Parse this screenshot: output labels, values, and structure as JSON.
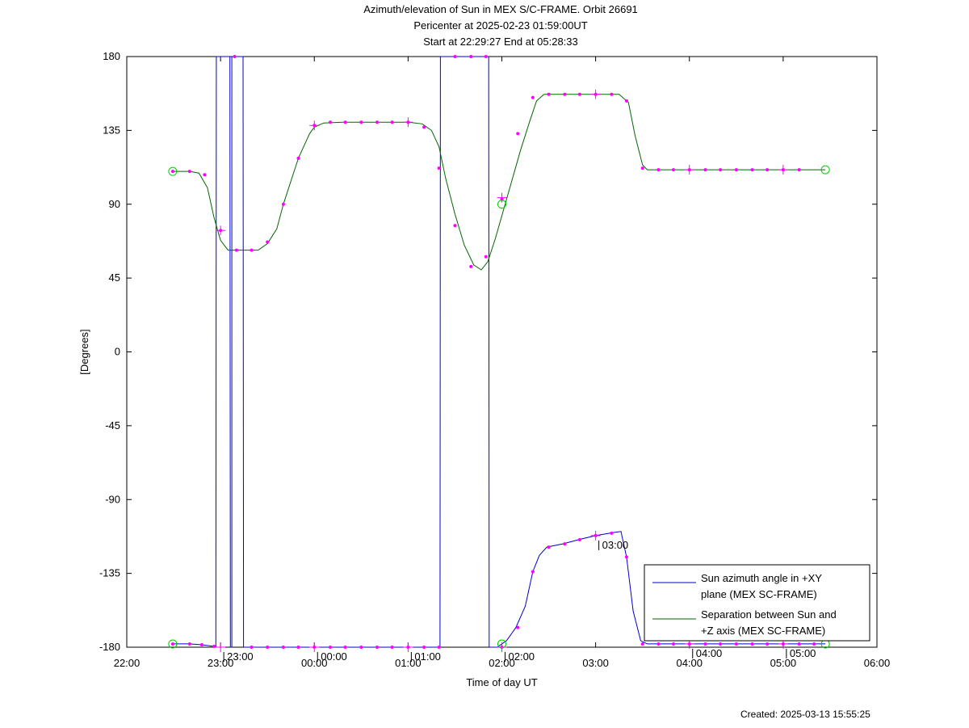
{
  "page": {
    "title_lines": [
      "Azimuth/elevation of Sun in MEX S/C-FRAME.  Orbit 26691",
      "Pericenter at 2025-02-23 01:59:00UT",
      "Start at 22:29:27 End at 05:28:33"
    ],
    "created": "Created: 2025-03-13 15:55:25"
  },
  "chart_data": {
    "type": "line",
    "title": "Azimuth/elevation of Sun in MEX S/C-FRAME.  Orbit 26691",
    "subtitle": "Pericenter at 2025-02-23 01:59:00UT / Start at 22:29:27 End at 05:28:33",
    "xlabel": "Time of day UT",
    "ylabel": "[Degrees]",
    "x_unit": "hours since 22:00 UT",
    "xlim": [
      0,
      8
    ],
    "ylim": [
      -180,
      180
    ],
    "x_ticks": [
      {
        "x": 0,
        "label": "22:00"
      },
      {
        "x": 1,
        "label": "23:00"
      },
      {
        "x": 2,
        "label": "00:00"
      },
      {
        "x": 3,
        "label": "01:00"
      },
      {
        "x": 4,
        "label": "02:00"
      },
      {
        "x": 5,
        "label": "03:00"
      },
      {
        "x": 6,
        "label": "04:00"
      },
      {
        "x": 7,
        "label": "05:00"
      },
      {
        "x": 8,
        "label": "06:00"
      }
    ],
    "y_ticks": [
      180,
      135,
      90,
      45,
      0,
      -45,
      -90,
      -135,
      -180
    ],
    "grid": false,
    "legend_position": "bottom-right",
    "series": [
      {
        "name": "Sun azimuth angle in +XY plane (MEX SC-FRAME)",
        "legend_lines": [
          "Sun azimuth angle in +XY",
          "plane (MEX SC-FRAME)"
        ],
        "color": "#0000cc",
        "points": [
          [
            0.49,
            -178
          ],
          [
            0.67,
            -178
          ],
          [
            0.8,
            -178.5
          ],
          [
            0.93,
            -179.5
          ],
          [
            0.95,
            -179.5
          ],
          [
            0.955,
            180
          ],
          [
            1.1,
            180
          ],
          [
            1.105,
            -180
          ],
          [
            1.12,
            -180
          ],
          [
            1.12,
            180
          ],
          [
            1.24,
            180
          ],
          [
            1.245,
            -180
          ],
          [
            1.5,
            -180
          ],
          [
            2.0,
            -180
          ],
          [
            2.5,
            -180
          ],
          [
            3.0,
            -180
          ],
          [
            3.3,
            -180
          ],
          [
            3.34,
            -180
          ],
          [
            3.345,
            180
          ],
          [
            3.8,
            180
          ],
          [
            3.86,
            180
          ],
          [
            3.865,
            -180
          ],
          [
            3.95,
            -180
          ],
          [
            4.05,
            -176
          ],
          [
            4.15,
            -168
          ],
          [
            4.25,
            -155
          ],
          [
            4.33,
            -134
          ],
          [
            4.4,
            -124
          ],
          [
            4.48,
            -119
          ],
          [
            4.65,
            -117
          ],
          [
            4.85,
            -114
          ],
          [
            5.0,
            -112
          ],
          [
            5.2,
            -110
          ],
          [
            5.27,
            -109.5
          ],
          [
            5.33,
            -125
          ],
          [
            5.4,
            -158
          ],
          [
            5.48,
            -176
          ],
          [
            5.55,
            -178
          ],
          [
            6.0,
            -178
          ],
          [
            6.5,
            -178
          ],
          [
            7.0,
            -178
          ],
          [
            7.45,
            -178
          ]
        ],
        "markers": [
          [
            0.49,
            -178
          ],
          [
            0.67,
            -178
          ],
          [
            0.8,
            -178.5
          ],
          [
            0.93,
            -179.5
          ],
          [
            1.15,
            180
          ],
          [
            1.33,
            -180
          ],
          [
            1.5,
            -180
          ],
          [
            1.67,
            -180
          ],
          [
            1.83,
            -180
          ],
          [
            2.0,
            -180
          ],
          [
            2.17,
            -180
          ],
          [
            2.33,
            -180
          ],
          [
            2.5,
            -180
          ],
          [
            2.67,
            -180
          ],
          [
            2.83,
            -180
          ],
          [
            3.0,
            -180
          ],
          [
            3.17,
            -180
          ],
          [
            3.33,
            -180
          ],
          [
            3.5,
            180
          ],
          [
            3.67,
            180
          ],
          [
            3.83,
            180
          ],
          [
            4.0,
            -180
          ],
          [
            4.17,
            -168
          ],
          [
            4.33,
            -134
          ],
          [
            4.5,
            -119
          ],
          [
            4.67,
            -117
          ],
          [
            4.83,
            -114.5
          ],
          [
            5.0,
            -112
          ],
          [
            5.17,
            -110.5
          ],
          [
            5.33,
            -125
          ],
          [
            5.5,
            -178
          ],
          [
            5.67,
            -178
          ],
          [
            5.83,
            -178
          ],
          [
            6.0,
            -178
          ],
          [
            6.17,
            -178
          ],
          [
            6.33,
            -178
          ],
          [
            6.5,
            -178
          ],
          [
            6.67,
            -178
          ],
          [
            6.83,
            -178
          ],
          [
            7.0,
            -178
          ],
          [
            7.17,
            -178
          ],
          [
            7.33,
            -178
          ]
        ],
        "crosses": [
          [
            1.0,
            -180
          ],
          [
            2.0,
            -180
          ],
          [
            3.0,
            -180
          ],
          [
            4.0,
            -180
          ],
          [
            5.0,
            -112
          ],
          [
            6.0,
            -178
          ],
          [
            7.0,
            -178
          ]
        ]
      },
      {
        "name": "Separation between Sun and +Z axis (MEX SC-FRAME)",
        "legend_lines": [
          "Separation between Sun and",
          "+Z axis (MEX SC-FRAME)"
        ],
        "color": "#006600",
        "points": [
          [
            0.49,
            110
          ],
          [
            0.67,
            110
          ],
          [
            0.77,
            109
          ],
          [
            0.86,
            100
          ],
          [
            0.93,
            82
          ],
          [
            1.0,
            68
          ],
          [
            1.08,
            62
          ],
          [
            1.25,
            62
          ],
          [
            1.4,
            62
          ],
          [
            1.5,
            66
          ],
          [
            1.6,
            75
          ],
          [
            1.67,
            90
          ],
          [
            1.83,
            118
          ],
          [
            1.95,
            133
          ],
          [
            2.0,
            137
          ],
          [
            2.1,
            139.5
          ],
          [
            2.3,
            140
          ],
          [
            2.75,
            140
          ],
          [
            3.0,
            140
          ],
          [
            3.15,
            139
          ],
          [
            3.25,
            135
          ],
          [
            3.33,
            125
          ],
          [
            3.4,
            106
          ],
          [
            3.5,
            84
          ],
          [
            3.6,
            65
          ],
          [
            3.7,
            53
          ],
          [
            3.78,
            50
          ],
          [
            3.85,
            55
          ],
          [
            3.93,
            69
          ],
          [
            4.0,
            83
          ],
          [
            4.1,
            103
          ],
          [
            4.2,
            123
          ],
          [
            4.3,
            141
          ],
          [
            4.37,
            153
          ],
          [
            4.45,
            157
          ],
          [
            4.6,
            157
          ],
          [
            5.0,
            157
          ],
          [
            5.25,
            157
          ],
          [
            5.35,
            152
          ],
          [
            5.42,
            132
          ],
          [
            5.5,
            114
          ],
          [
            5.55,
            111
          ],
          [
            6.0,
            111
          ],
          [
            6.5,
            111
          ],
          [
            7.0,
            111
          ],
          [
            7.45,
            111
          ]
        ],
        "markers": [
          [
            0.49,
            110
          ],
          [
            0.67,
            110
          ],
          [
            0.83,
            108
          ],
          [
            1.0,
            74
          ],
          [
            1.17,
            62
          ],
          [
            1.33,
            62
          ],
          [
            1.5,
            67
          ],
          [
            1.67,
            90
          ],
          [
            1.83,
            118
          ],
          [
            2.0,
            138
          ],
          [
            2.17,
            140
          ],
          [
            2.33,
            140
          ],
          [
            2.5,
            140
          ],
          [
            2.67,
            140
          ],
          [
            2.83,
            140
          ],
          [
            3.0,
            140
          ],
          [
            3.17,
            137
          ],
          [
            3.33,
            112
          ],
          [
            3.5,
            77
          ],
          [
            3.67,
            52
          ],
          [
            3.83,
            58
          ],
          [
            4.0,
            93
          ],
          [
            4.17,
            133
          ],
          [
            4.33,
            155
          ],
          [
            4.5,
            157
          ],
          [
            4.67,
            157
          ],
          [
            4.83,
            157
          ],
          [
            5.0,
            157
          ],
          [
            5.17,
            157
          ],
          [
            5.33,
            153
          ],
          [
            5.5,
            112
          ],
          [
            5.67,
            111
          ],
          [
            5.83,
            111
          ],
          [
            6.0,
            111
          ],
          [
            6.17,
            111
          ],
          [
            6.33,
            111
          ],
          [
            6.5,
            111
          ],
          [
            6.67,
            111
          ],
          [
            6.83,
            111
          ],
          [
            7.0,
            111
          ],
          [
            7.17,
            111
          ]
        ],
        "crosses": [
          [
            1.0,
            74
          ],
          [
            2.0,
            138
          ],
          [
            3.0,
            140
          ],
          [
            4.0,
            94
          ],
          [
            5.0,
            157
          ],
          [
            6.0,
            111
          ],
          [
            7.0,
            111
          ]
        ]
      }
    ],
    "endpoint_circles": [
      [
        0.49,
        110
      ],
      [
        7.45,
        111
      ],
      [
        4.0,
        90
      ],
      [
        0.49,
        -178
      ],
      [
        7.45,
        -178
      ],
      [
        4.0,
        -178
      ]
    ],
    "annotations": [
      {
        "x": 1.0,
        "y": -180,
        "text": "23:00"
      },
      {
        "x": 2.0,
        "y": -180,
        "text": "00:00"
      },
      {
        "x": 3.0,
        "y": -180,
        "text": "01:00"
      },
      {
        "x": 4.0,
        "y": -180,
        "text": "02:00"
      },
      {
        "x": 5.0,
        "y": -112,
        "text": "03:00"
      },
      {
        "x": 6.0,
        "y": -178,
        "text": "04:00"
      },
      {
        "x": 7.0,
        "y": -178,
        "text": "05:00"
      }
    ]
  }
}
